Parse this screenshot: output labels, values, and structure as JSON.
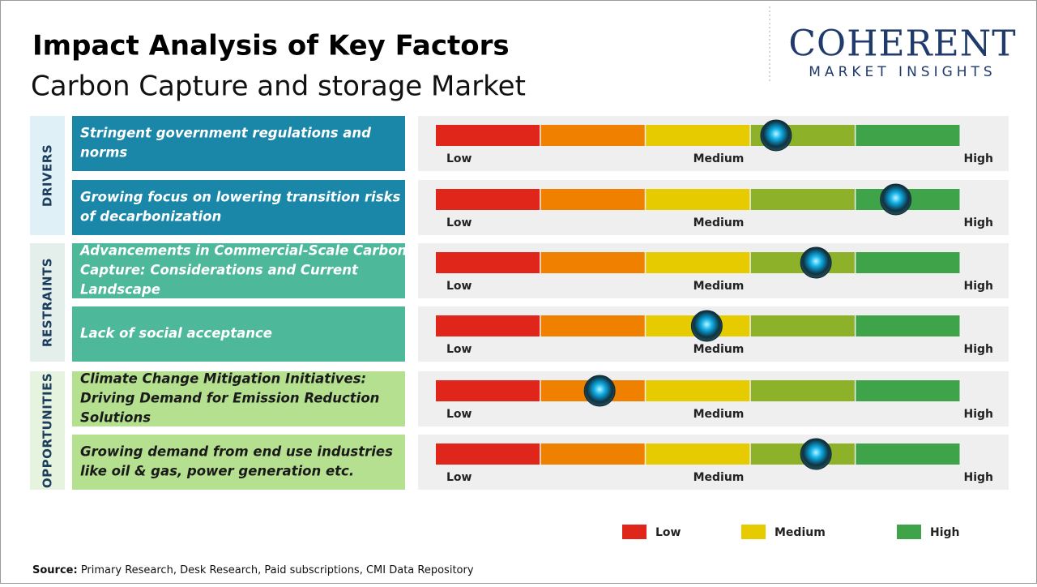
{
  "header": {
    "title": "Impact Analysis of Key Factors",
    "subtitle": "Carbon Capture and storage Market"
  },
  "logo": {
    "name": "COHERENT",
    "tagline": "MARKET INSIGHTS"
  },
  "gauge_colors": [
    "#e0261b",
    "#ef8000",
    "#e6cb00",
    "#8db22a",
    "#3fa34a"
  ],
  "groups": [
    {
      "label": "DRIVERS",
      "background": "#dff0f7",
      "row_color": "#1a86a8",
      "text_color": "#ffffff",
      "rows": [
        {
          "lines": [
            "Stringent  government  regulations  and",
            "norms"
          ],
          "level": 3.24
        },
        {
          "lines": [
            "Growing focus on lowering transition risks",
            "of decarbonization"
          ],
          "level": 4.38
        }
      ]
    },
    {
      "label": "RESTRAINTS",
      "background": "#e4efec",
      "row_color": "#4db89a",
      "text_color": "#ffffff",
      "rows": [
        {
          "lines": [
            "Advancements in Commercial-Scale Carbon",
            "Capture:  Considerations  and  Current",
            "Landscape"
          ],
          "level": 3.62
        },
        {
          "lines": [
            "Lack of social acceptance"
          ],
          "level": 2.58
        }
      ]
    },
    {
      "label": "OPPORTUNITIES",
      "background": "#e6f3df",
      "row_color": "#b5e08f",
      "text_color": "#1a1a1a",
      "rows": [
        {
          "lines": [
            "Climate Change Mitigation Initiatives:",
            "Driving Demand for Emission Reduction",
            "Solutions"
          ],
          "level": 1.56
        },
        {
          "lines": [
            "Growing demand from end use industries",
            "like oil & gas, power generation  etc."
          ],
          "level": 3.62
        }
      ]
    }
  ],
  "legend": [
    {
      "label": "Low",
      "color": "#e0261b"
    },
    {
      "label": "Medium",
      "color": "#e6cb00"
    },
    {
      "label": "High",
      "color": "#3fa34a"
    }
  ],
  "source": {
    "label": "Source:",
    "text": " Primary Research, Desk Research, Paid subscriptions, CMI Data Repository"
  }
}
